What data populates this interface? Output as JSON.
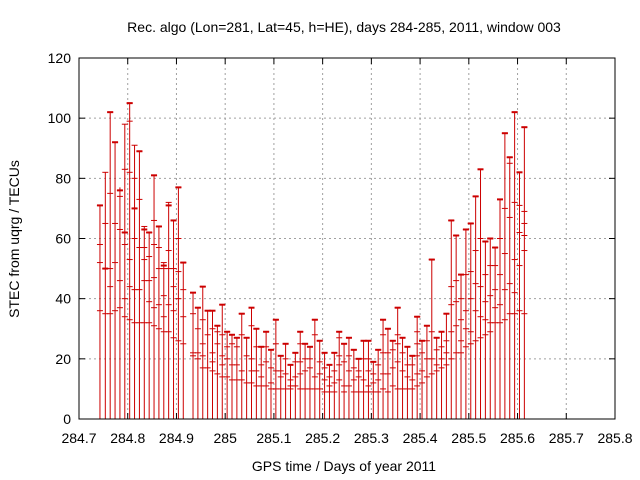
{
  "chart_data": {
    "type": "errorbar",
    "title": "Rec. algo (Lon=281, Lat=45, h=HE), days 284-285, 2011, window 003",
    "xlabel": "GPS time / Days of year 2011",
    "ylabel": "STEC from uqrg / TECUs",
    "xlim": [
      284.7,
      285.8
    ],
    "ylim": [
      0,
      120
    ],
    "x_ticks": [
      284.7,
      284.8,
      284.9,
      285.0,
      285.1,
      285.2,
      285.3,
      285.4,
      285.5,
      285.6,
      285.7,
      285.8
    ],
    "x_tick_labels": [
      "284.7",
      "284.8",
      "284.9",
      "285",
      "285.1",
      "285.2",
      "285.3",
      "285.4",
      "285.5",
      "285.6",
      "285.7",
      "285.8"
    ],
    "y_ticks": [
      0,
      20,
      40,
      60,
      80,
      100,
      120
    ],
    "y_tick_labels": [
      "0",
      "20",
      "40",
      "60",
      "80",
      "100",
      "120"
    ],
    "grid": true,
    "color": "#cc0000",
    "error_bars": [
      {
        "x": 284.743,
        "y": 71,
        "hi": 71,
        "lo": 0,
        "ticks": [
          71,
          58,
          52,
          36
        ]
      },
      {
        "x": 284.754,
        "y": 50,
        "hi": 82,
        "lo": 0,
        "ticks": [
          82,
          65,
          50,
          35
        ]
      },
      {
        "x": 284.764,
        "y": 102,
        "hi": 102,
        "lo": 0,
        "ticks": [
          102,
          75,
          50,
          44,
          35
        ]
      },
      {
        "x": 284.774,
        "y": 92,
        "hi": 92,
        "lo": 0,
        "ticks": [
          92,
          65,
          52,
          36
        ]
      },
      {
        "x": 284.784,
        "y": 76,
        "hi": 77,
        "lo": 0,
        "ticks": [
          76,
          74,
          63,
          46,
          37
        ]
      },
      {
        "x": 284.794,
        "y": 62,
        "hi": 98,
        "lo": 0,
        "ticks": [
          98,
          83,
          62,
          58,
          40,
          34
        ]
      },
      {
        "x": 284.804,
        "y": 105,
        "hi": 105,
        "lo": 0,
        "ticks": [
          105,
          99,
          82,
          53,
          44,
          33
        ]
      },
      {
        "x": 284.814,
        "y": 70,
        "hi": 91,
        "lo": 0,
        "ticks": [
          91,
          80,
          70,
          60,
          43,
          32
        ]
      },
      {
        "x": 284.824,
        "y": 89,
        "hi": 89,
        "lo": 0,
        "ticks": [
          89,
          73,
          57,
          43,
          32
        ]
      },
      {
        "x": 284.834,
        "y": 63,
        "hi": 64,
        "lo": 0,
        "ticks": [
          64,
          57,
          53,
          46,
          32
        ]
      },
      {
        "x": 284.844,
        "y": 62,
        "hi": 62,
        "lo": 0,
        "ticks": [
          62,
          54,
          46,
          39,
          32
        ]
      },
      {
        "x": 284.854,
        "y": 81,
        "hi": 81,
        "lo": 0,
        "ticks": [
          81,
          66,
          58,
          47,
          37,
          31
        ]
      },
      {
        "x": 284.864,
        "y": 64,
        "hi": 64,
        "lo": 0,
        "ticks": [
          64,
          57,
          50,
          38,
          30
        ]
      },
      {
        "x": 284.874,
        "y": 51,
        "hi": 52,
        "lo": 0,
        "ticks": [
          52,
          50,
          41,
          34,
          29
        ]
      },
      {
        "x": 284.884,
        "y": 71,
        "hi": 72,
        "lo": 0,
        "ticks": [
          72,
          56,
          50,
          38,
          29
        ]
      },
      {
        "x": 284.894,
        "y": 66,
        "hi": 66,
        "lo": 0,
        "ticks": [
          66,
          50,
          44,
          36,
          27
        ]
      },
      {
        "x": 284.904,
        "y": 77,
        "hi": 77,
        "lo": 0,
        "ticks": [
          77,
          60,
          49,
          40,
          26
        ]
      },
      {
        "x": 284.914,
        "y": 52,
        "hi": 52,
        "lo": 0,
        "ticks": [
          52,
          43,
          34,
          25
        ]
      },
      {
        "x": 284.934,
        "y": 42,
        "hi": 42,
        "lo": 0,
        "ticks": [
          42,
          35,
          22,
          21
        ]
      },
      {
        "x": 284.944,
        "y": 37,
        "hi": 37,
        "lo": 0,
        "ticks": [
          37,
          30,
          22,
          20
        ]
      },
      {
        "x": 284.954,
        "y": 44,
        "hi": 44,
        "lo": 0,
        "ticks": [
          44,
          33,
          25,
          21,
          17
        ]
      },
      {
        "x": 284.964,
        "y": 36,
        "hi": 36,
        "lo": 0,
        "ticks": [
          36,
          28,
          17
        ]
      },
      {
        "x": 284.974,
        "y": 36,
        "hi": 36,
        "lo": 0,
        "ticks": [
          36,
          30,
          22,
          19,
          16
        ]
      },
      {
        "x": 284.984,
        "y": 31,
        "hi": 31,
        "lo": 0,
        "ticks": [
          31,
          29,
          25,
          15
        ]
      },
      {
        "x": 284.994,
        "y": 38,
        "hi": 38,
        "lo": 0,
        "ticks": [
          38,
          28,
          21,
          18,
          14
        ]
      },
      {
        "x": 285.004,
        "y": 29,
        "hi": 29,
        "lo": 0,
        "ticks": [
          29,
          24,
          20,
          14
        ]
      },
      {
        "x": 285.014,
        "y": 28,
        "hi": 28,
        "lo": 0,
        "ticks": [
          28,
          25,
          18,
          13
        ]
      },
      {
        "x": 285.024,
        "y": 27,
        "hi": 27,
        "lo": 0,
        "ticks": [
          27,
          24,
          18,
          13
        ]
      },
      {
        "x": 285.034,
        "y": 35,
        "hi": 35,
        "lo": 0,
        "ticks": [
          35,
          28,
          16,
          13
        ]
      },
      {
        "x": 285.044,
        "y": 27,
        "hi": 27,
        "lo": 0,
        "ticks": [
          27,
          21,
          12
        ]
      },
      {
        "x": 285.054,
        "y": 37,
        "hi": 37,
        "lo": 0,
        "ticks": [
          37,
          31,
          20,
          16,
          12
        ]
      },
      {
        "x": 285.064,
        "y": 30,
        "hi": 30,
        "lo": 0,
        "ticks": [
          30,
          24,
          16,
          11
        ]
      },
      {
        "x": 285.074,
        "y": 24,
        "hi": 24,
        "lo": 0,
        "ticks": [
          24,
          18,
          14,
          11
        ]
      },
      {
        "x": 285.084,
        "y": 29,
        "hi": 29,
        "lo": 0,
        "ticks": [
          29,
          24,
          19,
          11
        ]
      },
      {
        "x": 285.094,
        "y": 23,
        "hi": 23,
        "lo": 0,
        "ticks": [
          23,
          17,
          12,
          10
        ]
      },
      {
        "x": 285.104,
        "y": 33,
        "hi": 33,
        "lo": 0,
        "ticks": [
          33,
          25,
          16,
          10
        ]
      },
      {
        "x": 285.114,
        "y": 21,
        "hi": 21,
        "lo": 0,
        "ticks": [
          21,
          16,
          14,
          10
        ]
      },
      {
        "x": 285.124,
        "y": 25,
        "hi": 25,
        "lo": 0,
        "ticks": [
          25,
          20,
          15,
          10
        ]
      },
      {
        "x": 285.134,
        "y": 18,
        "hi": 18,
        "lo": 0,
        "ticks": [
          18,
          13,
          11,
          10
        ]
      },
      {
        "x": 285.144,
        "y": 22,
        "hi": 22,
        "lo": 0,
        "ticks": [
          22,
          19,
          14,
          11
        ]
      },
      {
        "x": 285.154,
        "y": 29,
        "hi": 29,
        "lo": 0,
        "ticks": [
          29,
          25,
          19,
          15,
          10
        ]
      },
      {
        "x": 285.164,
        "y": 25,
        "hi": 25,
        "lo": 0,
        "ticks": [
          25,
          20,
          16,
          10
        ]
      },
      {
        "x": 285.174,
        "y": 24,
        "hi": 24,
        "lo": 0,
        "ticks": [
          24,
          20,
          17,
          10
        ]
      },
      {
        "x": 285.184,
        "y": 33,
        "hi": 33,
        "lo": 0,
        "ticks": [
          33,
          28,
          14,
          10
        ]
      },
      {
        "x": 285.194,
        "y": 26,
        "hi": 26,
        "lo": 0,
        "ticks": [
          26,
          19,
          15,
          10
        ]
      },
      {
        "x": 285.204,
        "y": 22,
        "hi": 22,
        "lo": 0,
        "ticks": [
          22,
          17,
          13,
          9
        ]
      },
      {
        "x": 285.214,
        "y": 18,
        "hi": 18,
        "lo": 0,
        "ticks": [
          18,
          14,
          11,
          9
        ]
      },
      {
        "x": 285.224,
        "y": 22,
        "hi": 22,
        "lo": 0,
        "ticks": [
          22,
          16,
          12,
          9
        ]
      },
      {
        "x": 285.234,
        "y": 29,
        "hi": 29,
        "lo": 0,
        "ticks": [
          29,
          27,
          21,
          18,
          13
        ]
      },
      {
        "x": 285.244,
        "y": 25,
        "hi": 25,
        "lo": 0,
        "ticks": [
          25,
          19,
          11,
          9
        ]
      },
      {
        "x": 285.254,
        "y": 27,
        "hi": 27,
        "lo": 0,
        "ticks": [
          27,
          21,
          16,
          11
        ]
      },
      {
        "x": 285.264,
        "y": 23,
        "hi": 23,
        "lo": 0,
        "ticks": [
          23,
          17,
          13,
          9
        ]
      },
      {
        "x": 285.274,
        "y": 20,
        "hi": 20,
        "lo": 0,
        "ticks": [
          20,
          16,
          14,
          9
        ]
      },
      {
        "x": 285.284,
        "y": 26,
        "hi": 26,
        "lo": 0,
        "ticks": [
          26,
          20,
          13,
          9
        ]
      },
      {
        "x": 285.294,
        "y": 26,
        "hi": 26,
        "lo": 0,
        "ticks": [
          26,
          20,
          16,
          11,
          9
        ]
      },
      {
        "x": 285.304,
        "y": 19,
        "hi": 19,
        "lo": 0,
        "ticks": [
          19,
          15,
          12,
          9
        ]
      },
      {
        "x": 285.314,
        "y": 23,
        "hi": 23,
        "lo": 0,
        "ticks": [
          23,
          18,
          13,
          9
        ]
      },
      {
        "x": 285.324,
        "y": 33,
        "hi": 33,
        "lo": 0,
        "ticks": [
          33,
          28,
          22,
          15,
          10
        ]
      },
      {
        "x": 285.334,
        "y": 30,
        "hi": 30,
        "lo": 0,
        "ticks": [
          30,
          22,
          15,
          9
        ]
      },
      {
        "x": 285.344,
        "y": 26,
        "hi": 26,
        "lo": 0,
        "ticks": [
          26,
          23,
          17,
          11
        ]
      },
      {
        "x": 285.354,
        "y": 37,
        "hi": 37,
        "lo": 0,
        "ticks": [
          37,
          28,
          25,
          19,
          10
        ]
      },
      {
        "x": 285.364,
        "y": 27,
        "hi": 27,
        "lo": 0,
        "ticks": [
          27,
          22,
          16,
          10
        ]
      },
      {
        "x": 285.374,
        "y": 24,
        "hi": 24,
        "lo": 0,
        "ticks": [
          24,
          18,
          14,
          10
        ]
      },
      {
        "x": 285.384,
        "y": 21,
        "hi": 21,
        "lo": 0,
        "ticks": [
          21,
          18,
          13,
          10
        ]
      },
      {
        "x": 285.394,
        "y": 34,
        "hi": 34,
        "lo": 0,
        "ticks": [
          34,
          29,
          25,
          21,
          15,
          11
        ]
      },
      {
        "x": 285.404,
        "y": 26,
        "hi": 26,
        "lo": 0,
        "ticks": [
          26,
          22,
          16,
          12
        ]
      },
      {
        "x": 285.414,
        "y": 31,
        "hi": 31,
        "lo": 0,
        "ticks": [
          31,
          26,
          20,
          14
        ]
      },
      {
        "x": 285.424,
        "y": 53,
        "hi": 53,
        "lo": 0,
        "ticks": [
          53,
          29,
          20,
          15
        ]
      },
      {
        "x": 285.434,
        "y": 27,
        "hi": 27,
        "lo": 0,
        "ticks": [
          27,
          23,
          18,
          16
        ]
      },
      {
        "x": 285.444,
        "y": 29,
        "hi": 29,
        "lo": 0,
        "ticks": [
          29,
          24,
          20,
          17
        ]
      },
      {
        "x": 285.454,
        "y": 35,
        "hi": 35,
        "lo": 0,
        "ticks": [
          35,
          26,
          22,
          18
        ]
      },
      {
        "x": 285.464,
        "y": 66,
        "hi": 66,
        "lo": 0,
        "ticks": [
          66,
          44,
          38,
          29,
          20
        ]
      },
      {
        "x": 285.474,
        "y": 61,
        "hi": 61,
        "lo": 0,
        "ticks": [
          61,
          46,
          39,
          31,
          22
        ]
      },
      {
        "x": 285.484,
        "y": 48,
        "hi": 48,
        "lo": 0,
        "ticks": [
          48,
          40,
          33,
          26,
          22
        ]
      },
      {
        "x": 285.494,
        "y": 63,
        "hi": 63,
        "lo": 0,
        "ticks": [
          63,
          48,
          36,
          30,
          24
        ]
      },
      {
        "x": 285.504,
        "y": 65,
        "hi": 65,
        "lo": 0,
        "ticks": [
          65,
          49,
          40,
          29,
          25
        ]
      },
      {
        "x": 285.514,
        "y": 74,
        "hi": 74,
        "lo": 0,
        "ticks": [
          74,
          56,
          45,
          36,
          26
        ]
      },
      {
        "x": 285.524,
        "y": 83,
        "hi": 83,
        "lo": 0,
        "ticks": [
          83,
          60,
          44,
          34,
          27
        ]
      },
      {
        "x": 285.534,
        "y": 59,
        "hi": 59,
        "lo": 0,
        "ticks": [
          59,
          48,
          39,
          33,
          28
        ]
      },
      {
        "x": 285.544,
        "y": 60,
        "hi": 60,
        "lo": 0,
        "ticks": [
          60,
          51,
          41,
          32,
          29
        ]
      },
      {
        "x": 285.554,
        "y": 57,
        "hi": 57,
        "lo": 0,
        "ticks": [
          57,
          51,
          43,
          37,
          32
        ]
      },
      {
        "x": 285.564,
        "y": 73,
        "hi": 73,
        "lo": 0,
        "ticks": [
          73,
          60,
          48,
          38,
          32
        ]
      },
      {
        "x": 285.574,
        "y": 95,
        "hi": 95,
        "lo": 0,
        "ticks": [
          95,
          70,
          55,
          43,
          33
        ]
      },
      {
        "x": 285.584,
        "y": 87,
        "hi": 87,
        "lo": 0,
        "ticks": [
          87,
          85,
          67,
          45,
          35
        ]
      },
      {
        "x": 285.594,
        "y": 102,
        "hi": 102,
        "lo": 0,
        "ticks": [
          102,
          72,
          53,
          42,
          35
        ]
      },
      {
        "x": 285.604,
        "y": 82,
        "hi": 82,
        "lo": 0,
        "ticks": [
          82,
          71,
          62,
          51,
          36
        ]
      },
      {
        "x": 285.614,
        "y": 97,
        "hi": 97,
        "lo": 0,
        "ticks": [
          97,
          69,
          65,
          61,
          56,
          35
        ]
      }
    ]
  }
}
